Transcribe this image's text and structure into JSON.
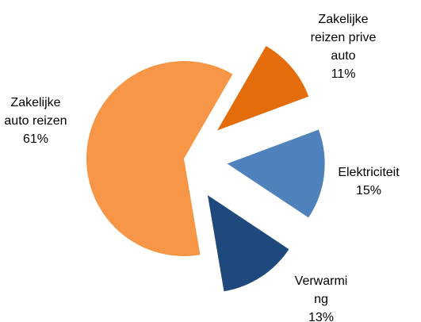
{
  "chart_data": {
    "type": "pie",
    "categories": [
      "Zakelijke reizen prive auto",
      "Elektriciteit",
      "Verwarming",
      "Zakelijke auto reizen"
    ],
    "values": [
      11,
      15,
      13,
      61
    ],
    "value_labels": [
      "11%",
      "15%",
      "13%",
      "61%"
    ],
    "colors": [
      "#E46C0A",
      "#4F81BD",
      "#1F497D",
      "#F79646"
    ]
  }
}
